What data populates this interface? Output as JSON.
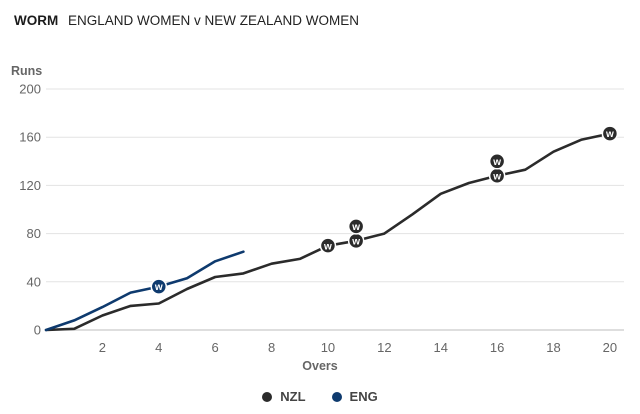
{
  "header": {
    "tag": "WORM",
    "title": "ENGLAND WOMEN v NEW ZEALAND WOMEN"
  },
  "chart_data": {
    "type": "line",
    "title": "ENGLAND WOMEN v NEW ZEALAND WOMEN",
    "xlabel": "Overs",
    "ylabel": "Runs",
    "xlim": [
      0,
      20.5
    ],
    "ylim": [
      0,
      200
    ],
    "xticks": [
      2,
      4,
      6,
      8,
      10,
      12,
      14,
      16,
      18,
      20
    ],
    "yticks": [
      0,
      40,
      80,
      120,
      160,
      200
    ],
    "grid": "horizontal",
    "legend_position": "bottom-center",
    "wicket_marker": "W",
    "series": [
      {
        "name": "NZL",
        "color": "#2b2b2b",
        "x": [
          0,
          1,
          2,
          3,
          4,
          5,
          6,
          7,
          8,
          9,
          10,
          11,
          12,
          13,
          14,
          15,
          16,
          17,
          18,
          19,
          20
        ],
        "values": [
          0,
          1,
          12,
          20,
          22,
          34,
          44,
          47,
          55,
          59,
          70,
          74,
          80,
          96,
          113,
          122,
          128,
          133,
          148,
          158,
          163
        ],
        "wickets": [
          {
            "over": 10,
            "runs": 70
          },
          {
            "over": 11,
            "runs": 74
          },
          {
            "over": 11,
            "runs": 86
          },
          {
            "over": 16,
            "runs": 128
          },
          {
            "over": 16,
            "runs": 140
          },
          {
            "over": 20,
            "runs": 163
          }
        ]
      },
      {
        "name": "ENG",
        "color": "#0e3a6e",
        "x": [
          0,
          1,
          2,
          3,
          4,
          5,
          6,
          7
        ],
        "values": [
          0,
          8,
          19,
          31,
          36,
          43,
          57,
          65
        ],
        "wickets": [
          {
            "over": 4,
            "runs": 36
          }
        ]
      }
    ]
  }
}
